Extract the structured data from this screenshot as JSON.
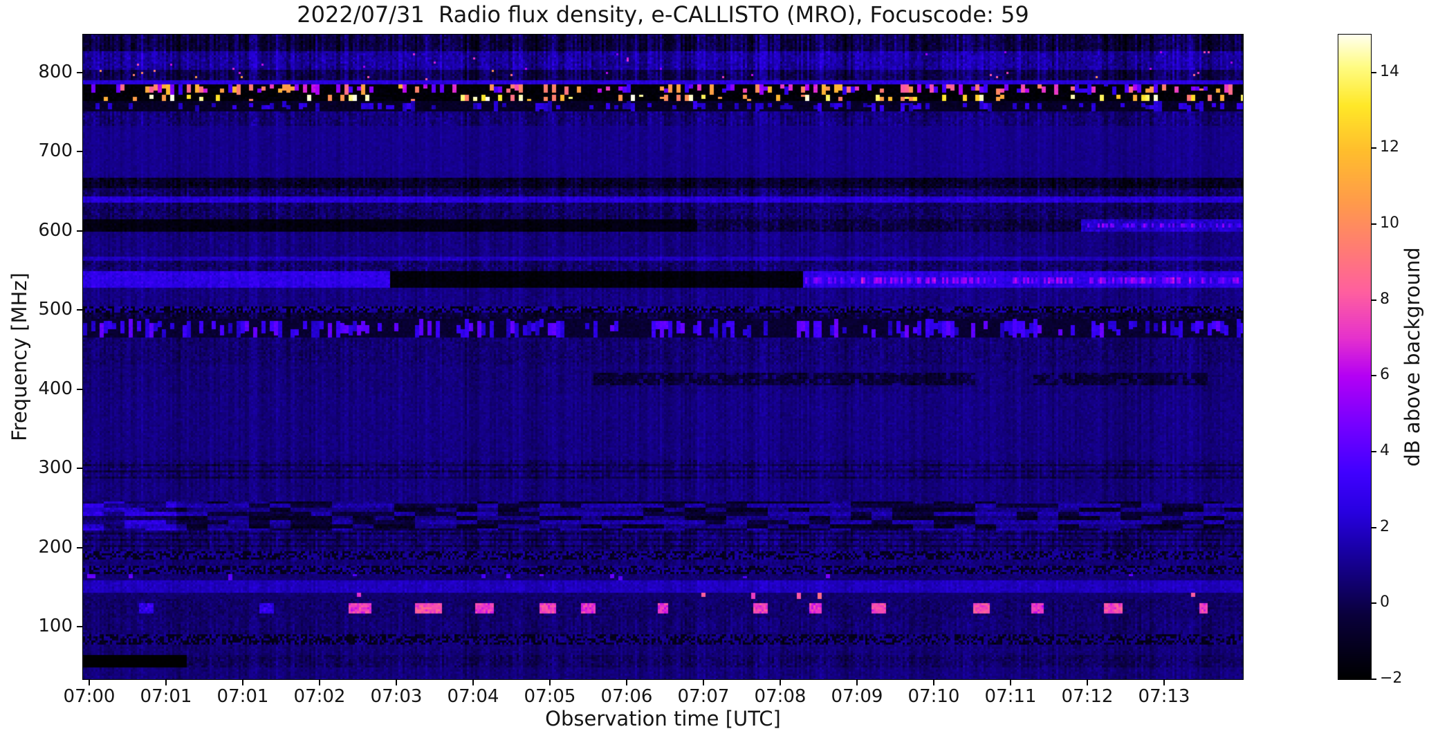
{
  "figure": {
    "title": "2022/07/31  Radio flux density, e-CALLISTO (MRO), Focuscode: 59",
    "xlabel": "Observation time [UTC]",
    "ylabel": "Frequency [MHz]",
    "colorbar_label": "dB above background"
  },
  "chart_data": {
    "type": "heatmap",
    "subtype": "radio-spectrogram",
    "title": "2022/07/31  Radio flux density, e-CALLISTO (MRO), Focuscode: 59",
    "xlabel": "Observation time [UTC]",
    "ylabel": "Frequency [MHz]",
    "x_tick_labels": [
      "07:00",
      "07:01",
      "07:01",
      "07:02",
      "07:03",
      "07:04",
      "07:05",
      "07:06",
      "07:07",
      "07:08",
      "07:09",
      "07:10",
      "07:11",
      "07:12",
      "07:13"
    ],
    "x_tick_start_frac": 0.00537,
    "x_tick_step_frac": 0.06619,
    "y_tick_values": [
      800,
      700,
      600,
      500,
      400,
      300,
      200,
      100
    ],
    "freq_range_mhz": [
      34,
      848
    ],
    "time_range_utc": [
      "07:00",
      "07:14"
    ],
    "grid": false,
    "colorbar": {
      "label": "dB above background",
      "vmin": -2,
      "vmax": 15,
      "ticks": [
        {
          "v": 14,
          "label": "14"
        },
        {
          "v": 12,
          "label": "12"
        },
        {
          "v": 10,
          "label": "10"
        },
        {
          "v": 8,
          "label": "8"
        },
        {
          "v": 6,
          "label": "6"
        },
        {
          "v": 4,
          "label": "4"
        },
        {
          "v": 2,
          "label": "2"
        },
        {
          "v": 0,
          "label": "0"
        },
        {
          "v": -2,
          "label": "−2"
        }
      ],
      "colormap": "gnuplot2-like (black-blue-violet-magenta-orange-yellow-white)",
      "palette_stops": [
        [
          0.0,
          0,
          0,
          0
        ],
        [
          0.1,
          10,
          0,
          60
        ],
        [
          0.2,
          25,
          0,
          165
        ],
        [
          0.26,
          40,
          0,
          225
        ],
        [
          0.32,
          64,
          0,
          255
        ],
        [
          0.4,
          122,
          0,
          255
        ],
        [
          0.47,
          180,
          0,
          245
        ],
        [
          0.53,
          230,
          50,
          205
        ],
        [
          0.6,
          255,
          95,
          160
        ],
        [
          0.67,
          255,
          125,
          115
        ],
        [
          0.74,
          255,
          155,
          75
        ],
        [
          0.82,
          255,
          190,
          45
        ],
        [
          0.89,
          255,
          232,
          40
        ],
        [
          0.95,
          255,
          252,
          130
        ],
        [
          1.0,
          255,
          255,
          238
        ]
      ]
    },
    "background_db": 1.0,
    "bands": [
      {
        "f": [
          826,
          848
        ],
        "type": "noise",
        "v": -0.2,
        "amp": 0.9,
        "stripe": 1.7
      },
      {
        "f": [
          804,
          826
        ],
        "type": "noise",
        "v": 1.3,
        "amp": 0.9,
        "stripe": 1.2,
        "sparkle": {
          "p": 0.004,
          "lo": 5,
          "hi": 8
        }
      },
      {
        "f": [
          791,
          804
        ],
        "type": "noise",
        "v": 0.1,
        "amp": 0.8,
        "stripe": 1.5,
        "sparkle": {
          "p": 0.01,
          "lo": 5,
          "hi": 11
        }
      },
      {
        "f": [
          786,
          791
        ],
        "type": "noise",
        "v": 2.4,
        "amp": 0.5,
        "stripe": 0.3
      },
      {
        "f": [
          773,
          786
        ],
        "type": "dashes",
        "bg": -1.8,
        "p": 0.55,
        "lo": 2.5,
        "hi": 12,
        "cg": 1
      },
      {
        "f": [
          763,
          773
        ],
        "type": "dashes",
        "bg": -1.8,
        "p": 0.3,
        "lo": 9,
        "hi": 15.4,
        "cg": 1
      },
      {
        "f": [
          752,
          763
        ],
        "type": "dashes",
        "bg": -0.9,
        "p": 0.35,
        "lo": 1.6,
        "hi": 3.2,
        "cg": 1
      },
      {
        "f": [
          733,
          752
        ],
        "type": "noise",
        "v": 0.7,
        "amp": 0.8,
        "stripe": 0.9
      },
      {
        "f": [
          668,
          733
        ],
        "type": "noise",
        "v": 1.0,
        "amp": 0.35,
        "stripe": 0.35
      },
      {
        "f": [
          655,
          668
        ],
        "type": "noise",
        "v": -0.9,
        "amp": 1.1,
        "stripe": 0.9
      },
      {
        "f": [
          643,
          655
        ],
        "type": "noise",
        "v": 0.3,
        "amp": 1.0,
        "stripe": 0.8
      },
      {
        "f": [
          636,
          643
        ],
        "type": "noise",
        "v": 2.3,
        "amp": 0.6,
        "stripe": 0.4
      },
      {
        "f": [
          616,
          636
        ],
        "type": "noise",
        "v": 0.35,
        "amp": 0.9,
        "stripe": 0.7
      },
      {
        "f": [
          598,
          616
        ],
        "type": "segments",
        "segs": [
          {
            "x": [
              0,
              0.53
            ],
            "v": -1.5,
            "amp": 0.5,
            "stripe": 0.3
          },
          {
            "x": [
              0.53,
              0.86
            ],
            "v": -0.3,
            "amp": 1.0,
            "stripe": 0.8
          },
          {
            "x": [
              0.86,
              1
            ],
            "v": 2.1,
            "amp": 0.8,
            "stripe": 0.5,
            "mag": true
          }
        ]
      },
      {
        "f": [
          567,
          598
        ],
        "type": "noise",
        "v": 0.8,
        "amp": 0.5,
        "stripe": 0.5
      },
      {
        "f": [
          562,
          567
        ],
        "type": "noise",
        "v": 1.8,
        "amp": 0.5,
        "stripe": 0.4
      },
      {
        "f": [
          548,
          562
        ],
        "type": "noise",
        "v": 0.5,
        "amp": 0.9,
        "stripe": 0.7
      },
      {
        "f": [
          528,
          548
        ],
        "type": "segments",
        "segs": [
          {
            "x": [
              0,
              0.265
            ],
            "v": 2.7,
            "amp": 0.7,
            "stripe": 0.4
          },
          {
            "x": [
              0.265,
              0.62
            ],
            "v": -1.7,
            "amp": 0.35,
            "stripe": 0.25
          },
          {
            "x": [
              0.62,
              1
            ],
            "v": 2.7,
            "amp": 0.7,
            "stripe": 0.5,
            "mag": true
          }
        ]
      },
      {
        "f": [
          505,
          528
        ],
        "type": "noise",
        "v": 0.85,
        "amp": 0.5,
        "stripe": 0.5
      },
      {
        "f": [
          498,
          505
        ],
        "type": "speckle",
        "v1": -1.4,
        "v2": 1.4
      },
      {
        "f": [
          488,
          498
        ],
        "type": "noise",
        "v": -0.4,
        "amp": 1.0,
        "stripe": 0.9
      },
      {
        "f": [
          465,
          488
        ],
        "type": "dashes",
        "bg": -0.6,
        "p": 0.5,
        "lo": 1.8,
        "hi": 4.5,
        "cg": 1
      },
      {
        "f": [
          432,
          465
        ],
        "type": "noise",
        "v": 0.55,
        "amp": 0.7,
        "stripe": 0.6
      },
      {
        "f": [
          396,
          432
        ],
        "type": "patches",
        "v": 0.7,
        "amp": 0.5,
        "stripe": 0.5,
        "drop": 1.4,
        "dark": [
          [
            0.44,
            0.77
          ],
          [
            0.82,
            0.97
          ]
        ]
      },
      {
        "f": [
          310,
          396
        ],
        "type": "noise",
        "v": 0.8,
        "amp": 0.45,
        "stripe": 0.45
      },
      {
        "f": [
          288,
          310
        ],
        "type": "noise",
        "v": 0.45,
        "amp": 0.8,
        "stripe": 0.7,
        "rowband": true
      },
      {
        "f": [
          258,
          288
        ],
        "type": "noise",
        "v": 0.75,
        "amp": 0.5,
        "stripe": 0.5
      },
      {
        "f": [
          222,
          258
        ],
        "type": "texture",
        "v1": -0.7,
        "v2": 1.2,
        "blockCols": 10,
        "brightX": 0.08,
        "brightAdd": 1.2
      },
      {
        "f": [
          196,
          222
        ],
        "type": "noise",
        "v": 0.4,
        "amp": 0.9,
        "stripe": 0.8,
        "rowband": true
      },
      {
        "f": [
          186,
          196
        ],
        "type": "speckle",
        "v1": -1.1,
        "v2": 1.1
      },
      {
        "f": [
          178,
          186
        ],
        "type": "noise",
        "v": 0.6,
        "amp": 0.5,
        "stripe": 0.5
      },
      {
        "f": [
          168,
          178
        ],
        "type": "speckle",
        "v1": -1.1,
        "v2": 1.1
      },
      {
        "f": [
          160,
          168
        ],
        "type": "dashes",
        "bg": 0.55,
        "p": 0.06,
        "lo": 3.5,
        "hi": 5,
        "cg": 1
      },
      {
        "f": [
          144,
          160
        ],
        "type": "noise",
        "v": 1.8,
        "amp": 0.5,
        "stripe": 0.4
      },
      {
        "f": [
          136,
          144
        ],
        "type": "dashes",
        "bg": 0.5,
        "p": 0.012,
        "lo": 7,
        "hi": 9,
        "cg": 1
      },
      {
        "f": [
          112,
          136
        ],
        "type": "blobs",
        "v": 0.45,
        "amp": 0.7,
        "items": [
          {
            "x": 0.054,
            "w": 0.013,
            "v": 2.8
          },
          {
            "x": 0.158,
            "w": 0.013,
            "v": 2.8
          },
          {
            "x": 0.239,
            "w": 0.02,
            "v": 7.4
          },
          {
            "x": 0.298,
            "w": 0.022,
            "v": 7.8
          },
          {
            "x": 0.346,
            "w": 0.016,
            "v": 7.2
          },
          {
            "x": 0.4,
            "w": 0.014,
            "v": 7.6
          },
          {
            "x": 0.435,
            "w": 0.012,
            "v": 7.2
          },
          {
            "x": 0.5,
            "w": 0.01,
            "v": 7.0
          },
          {
            "x": 0.584,
            "w": 0.012,
            "v": 7.4
          },
          {
            "x": 0.632,
            "w": 0.01,
            "v": 7.0
          },
          {
            "x": 0.686,
            "w": 0.012,
            "v": 7.6
          },
          {
            "x": 0.775,
            "w": 0.014,
            "v": 7.8
          },
          {
            "x": 0.823,
            "w": 0.01,
            "v": 7.0
          },
          {
            "x": 0.889,
            "w": 0.016,
            "v": 7.6
          },
          {
            "x": 0.966,
            "w": 0.008,
            "v": 7.2
          }
        ]
      },
      {
        "f": [
          92,
          112
        ],
        "type": "noise",
        "v": 0.55,
        "amp": 0.6,
        "stripe": 0.6
      },
      {
        "f": [
          78,
          92
        ],
        "type": "speckle",
        "v1": -1.2,
        "v2": 0.9
      },
      {
        "f": [
          64,
          78
        ],
        "type": "noise",
        "v": 0.6,
        "amp": 0.5,
        "stripe": 0.5
      },
      {
        "f": [
          48,
          64
        ],
        "type": "segments",
        "segs": [
          {
            "x": [
              0,
              0.09
            ],
            "v": -1.95,
            "amp": 0.1,
            "stripe": 0
          },
          {
            "x": [
              0.09,
              1
            ],
            "v": 0.35,
            "amp": 0.8,
            "stripe": 0.7
          }
        ]
      },
      {
        "f": [
          34,
          48
        ],
        "type": "noise",
        "v": 0.7,
        "amp": 0.5,
        "stripe": 0.5
      }
    ]
  }
}
